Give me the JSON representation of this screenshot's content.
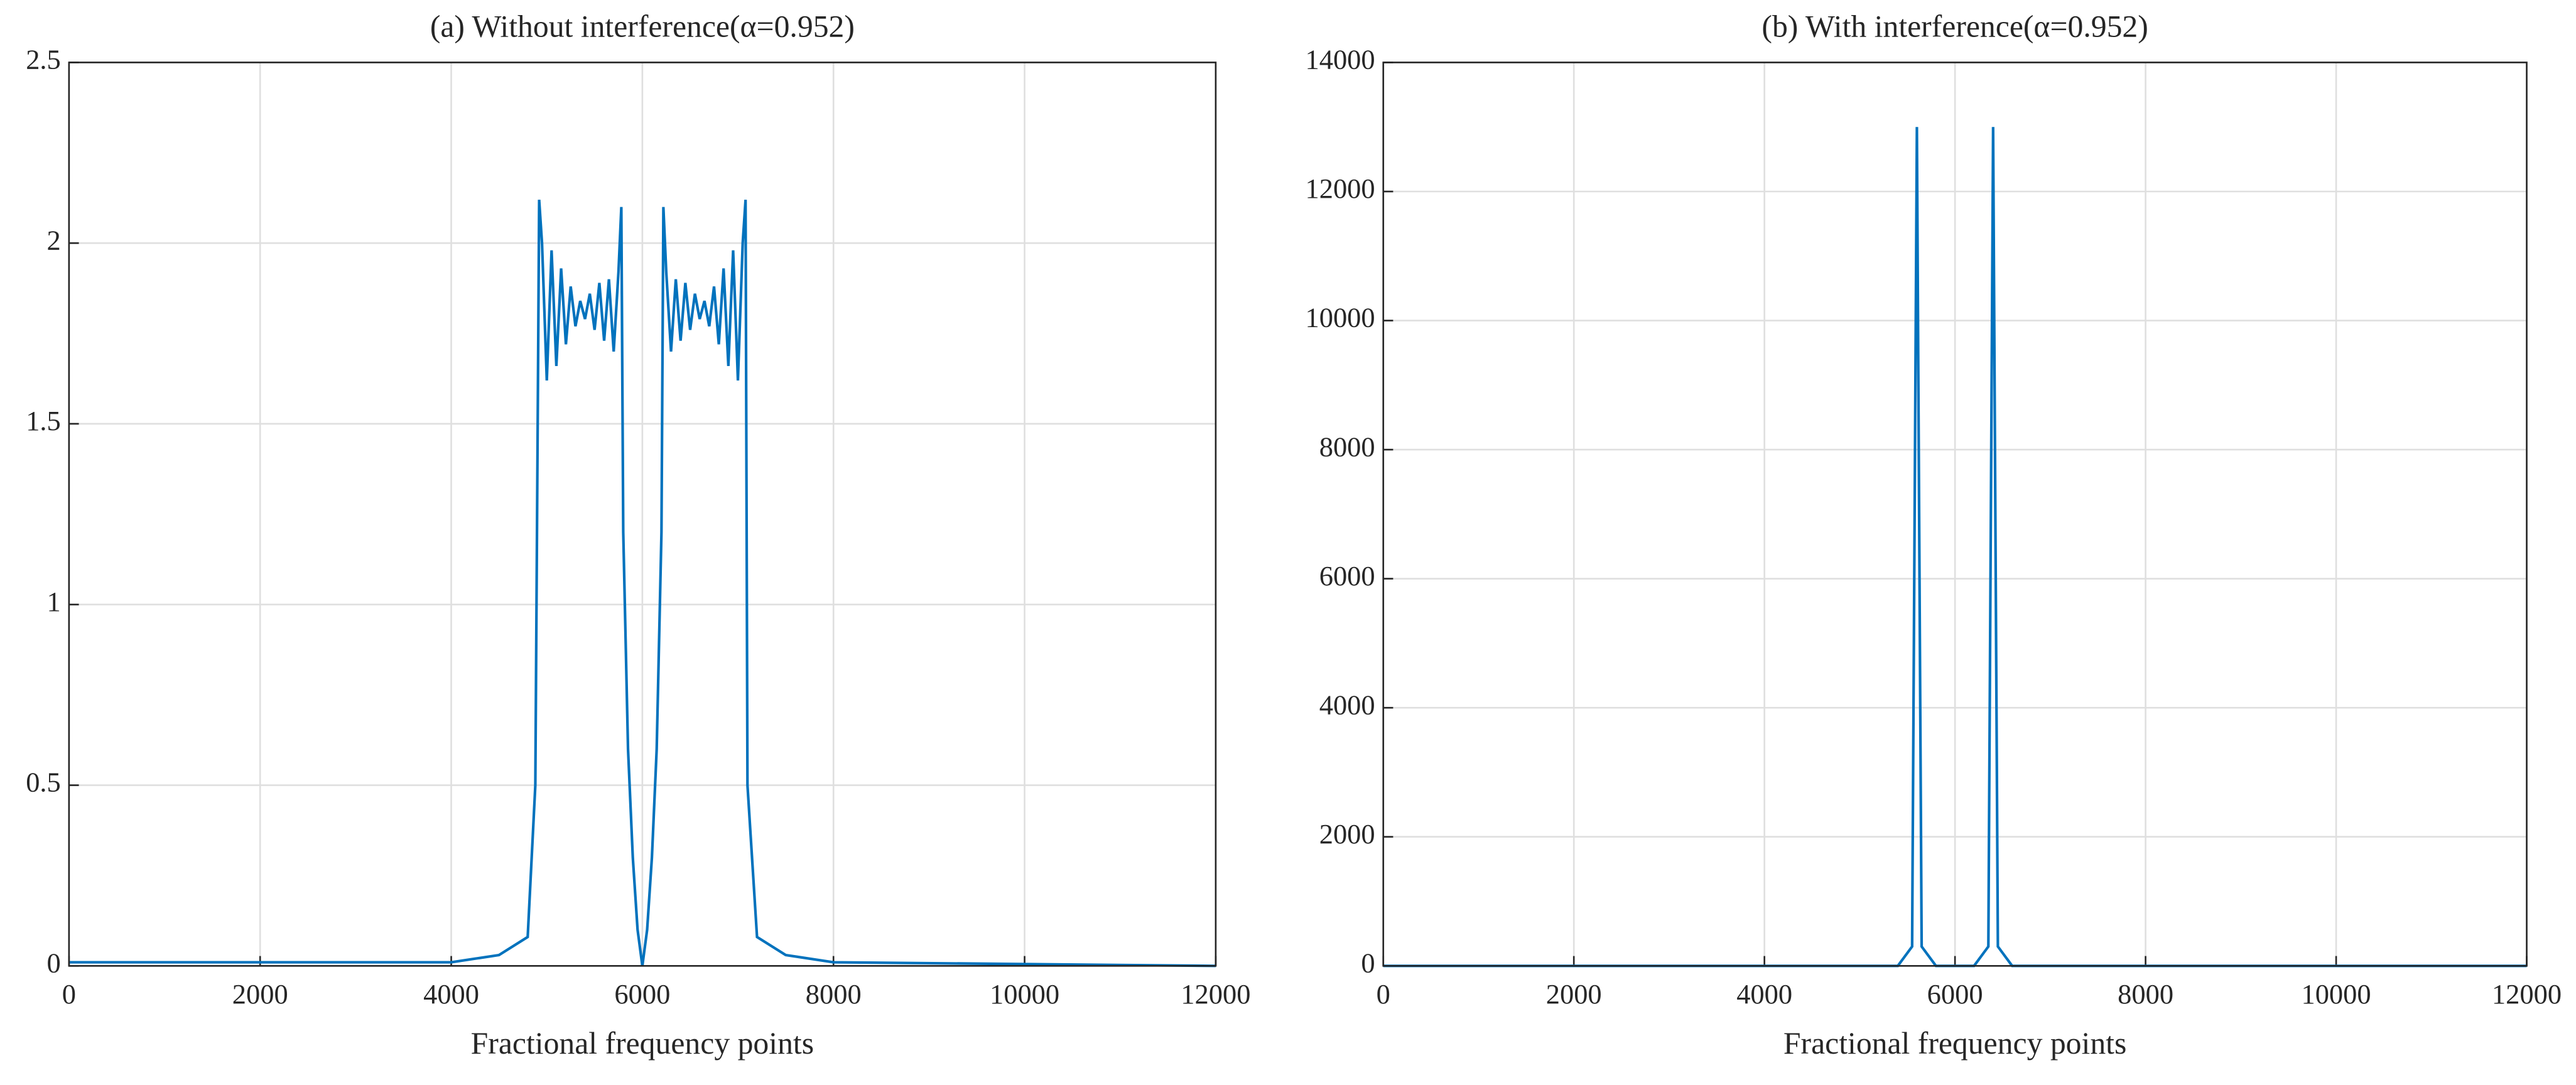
{
  "chart_data": [
    {
      "type": "line",
      "title": "(a) Without interference(α=0.952)",
      "xlabel": "Fractional frequency points",
      "xlim": [
        0,
        12000
      ],
      "ylim": [
        0,
        2.5
      ],
      "xticks": [
        0,
        2000,
        4000,
        6000,
        8000,
        10000,
        12000
      ],
      "yticks": [
        0,
        0.5,
        1,
        1.5,
        2,
        2.5
      ],
      "grid": true,
      "series": [
        {
          "color": "#0072bd",
          "x": [
            0,
            2000,
            4000,
            4500,
            4800,
            4880,
            4920,
            4950,
            5000,
            5050,
            5100,
            5150,
            5200,
            5250,
            5300,
            5350,
            5400,
            5450,
            5500,
            5550,
            5600,
            5650,
            5700,
            5750,
            5780,
            5800,
            5850,
            5900,
            5950,
            6000,
            6050,
            6100,
            6150,
            6200,
            6220,
            6250,
            6300,
            6350,
            6400,
            6450,
            6500,
            6550,
            6600,
            6650,
            6700,
            6750,
            6800,
            6850,
            6900,
            6950,
            7000,
            7050,
            7080,
            7100,
            7200,
            7500,
            8000,
            12000
          ],
          "values": [
            0.01,
            0.01,
            0.01,
            0.03,
            0.08,
            0.5,
            2.12,
            2.0,
            1.62,
            1.98,
            1.66,
            1.93,
            1.72,
            1.88,
            1.77,
            1.84,
            1.79,
            1.86,
            1.76,
            1.89,
            1.73,
            1.9,
            1.7,
            1.92,
            2.1,
            1.2,
            0.6,
            0.3,
            0.1,
            0.0,
            0.1,
            0.3,
            0.6,
            1.2,
            2.1,
            1.92,
            1.7,
            1.9,
            1.73,
            1.89,
            1.76,
            1.86,
            1.79,
            1.84,
            1.77,
            1.88,
            1.72,
            1.93,
            1.66,
            1.98,
            1.62,
            2.0,
            2.12,
            0.5,
            0.08,
            0.03,
            0.01,
            0.0
          ]
        }
      ]
    },
    {
      "type": "line",
      "title": "(b) With interference(α=0.952)",
      "xlabel": "Fractional frequency points",
      "xlim": [
        0,
        12000
      ],
      "ylim": [
        0,
        14000
      ],
      "xticks": [
        0,
        2000,
        4000,
        6000,
        8000,
        10000,
        12000
      ],
      "yticks": [
        0,
        2000,
        4000,
        6000,
        8000,
        10000,
        12000,
        14000
      ],
      "grid": true,
      "series": [
        {
          "color": "#0072bd",
          "x": [
            0,
            5400,
            5550,
            5600,
            5650,
            5800,
            6200,
            6350,
            6400,
            6450,
            6600,
            12000
          ],
          "values": [
            0,
            0,
            300,
            13000,
            300,
            0,
            0,
            300,
            13000,
            300,
            0,
            0
          ]
        }
      ]
    }
  ]
}
